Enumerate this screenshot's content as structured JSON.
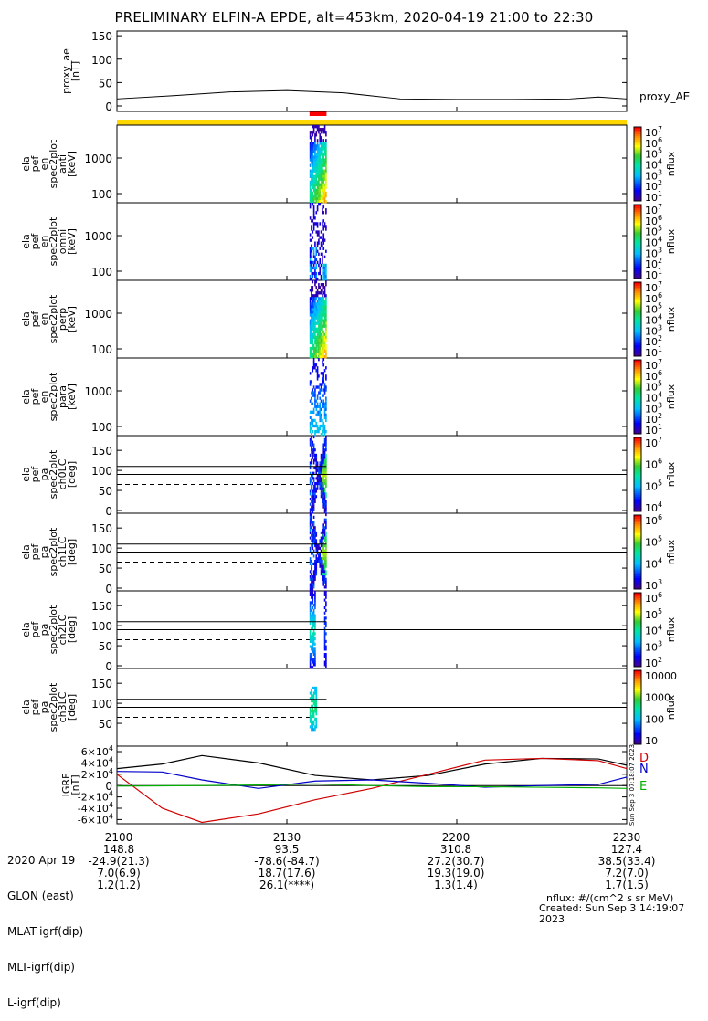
{
  "title": "PRELIMINARY ELFIN-A EPDE, alt=453km, 2020-04-19 21:00 to 22:30",
  "colors": {
    "science_bar": "#ffd700",
    "interval_bar": "#ff0000",
    "D": "#d00000",
    "N": "#0000c8",
    "E": "#00b000"
  },
  "panels": [
    {
      "key": "proxy_ae",
      "ylabel": [
        "proxy_ae",
        "[nT]"
      ],
      "yticks": [
        "150",
        "100",
        "50",
        "0"
      ],
      "right_label": "proxy_AE"
    },
    {
      "key": "spec_anti",
      "ylabel": [
        "ela",
        "pef",
        "en",
        "spec2plot",
        "anti",
        "[keV]"
      ],
      "yticks": [
        "1000",
        "100"
      ],
      "cbar_ticks": [
        "10^7",
        "10^6",
        "10^5",
        "10^4",
        "10^3",
        "10^2",
        "10^1"
      ],
      "cbar_label": "nflux"
    },
    {
      "key": "spec_omni",
      "ylabel": [
        "ela",
        "pef",
        "en",
        "spec2plot",
        "omni",
        "[keV]"
      ],
      "yticks": [
        "1000",
        "100"
      ],
      "cbar_ticks": [
        "10^7",
        "10^6",
        "10^5",
        "10^4",
        "10^3",
        "10^2",
        "10^1"
      ],
      "cbar_label": "nflux"
    },
    {
      "key": "spec_perp",
      "ylabel": [
        "ela",
        "pef",
        "en",
        "spec2plot",
        "perp",
        "[keV]"
      ],
      "yticks": [
        "1000",
        "100"
      ],
      "cbar_ticks": [
        "10^7",
        "10^6",
        "10^5",
        "10^4",
        "10^3",
        "10^2",
        "10^1"
      ],
      "cbar_label": "nflux"
    },
    {
      "key": "spec_para",
      "ylabel": [
        "ela",
        "pef",
        "en",
        "spec2plot",
        "para",
        "[keV]"
      ],
      "yticks": [
        "1000",
        "100"
      ],
      "cbar_ticks": [
        "10^7",
        "10^6",
        "10^5",
        "10^4",
        "10^3",
        "10^2",
        "10^1"
      ],
      "cbar_label": "nflux"
    },
    {
      "key": "pa_ch0",
      "ylabel": [
        "ela",
        "pef",
        "pa",
        "spec2plot",
        "ch0LC",
        "[deg]"
      ],
      "yticks": [
        "150",
        "100",
        "50",
        "0"
      ],
      "cbar_ticks": [
        "10^7",
        "10^6",
        "10^5",
        "10^4"
      ],
      "cbar_label": "nflux"
    },
    {
      "key": "pa_ch1",
      "ylabel": [
        "ela",
        "pef",
        "pa",
        "spec2plot",
        "ch1LC",
        "[deg]"
      ],
      "yticks": [
        "150",
        "100",
        "50",
        "0"
      ],
      "cbar_ticks": [
        "10^6",
        "10^5",
        "10^4",
        "10^3"
      ],
      "cbar_label": "nflux"
    },
    {
      "key": "pa_ch2",
      "ylabel": [
        "ela",
        "pef",
        "pa",
        "spec2plot",
        "ch2LC",
        "[deg]"
      ],
      "yticks": [
        "150",
        "100",
        "50",
        "0"
      ],
      "cbar_ticks": [
        "10^6",
        "10^5",
        "10^4",
        "10^3",
        "10^2"
      ],
      "cbar_label": "nflux"
    },
    {
      "key": "pa_ch3",
      "ylabel": [
        "ela",
        "pef",
        "pa",
        "spec2plot",
        "ch3LC",
        "[deg]"
      ],
      "yticks": [
        "150",
        "100",
        "50"
      ],
      "cbar_ticks": [
        "10000",
        "1000",
        "100",
        "10"
      ],
      "cbar_label": "nflux"
    },
    {
      "key": "igrf",
      "ylabel": [
        "IGRF",
        "[nT]"
      ],
      "yticks": [
        "6×10^4",
        "4×10^4",
        "2×10^4",
        "0",
        "-2×10^4",
        "-4×10^4",
        "-6×10^4"
      ],
      "legend": [
        "D",
        "N",
        "E"
      ]
    }
  ],
  "info_labels": [
    "2020 Apr 19",
    "GLON (east)",
    "MLAT-igrf(dip)",
    "MLT-igrf(dip)",
    "L-igrf(dip)"
  ],
  "info_columns": [
    {
      "time": "2100",
      "glon": "148.8",
      "mlat": "-24.9(21.3)",
      "mlt": "7.0(6.9)",
      "l": "1.2(1.2)"
    },
    {
      "time": "2130",
      "glon": "93.5",
      "mlat": "-78.6(-84.7)",
      "mlt": "18.7(17.6)",
      "l": "26.1(****)"
    },
    {
      "time": "2200",
      "glon": "310.8",
      "mlat": "27.2(30.7)",
      "mlt": "19.3(19.0)",
      "l": "1.3(1.4)"
    },
    {
      "time": "2230",
      "glon": "127.4",
      "mlat": "38.5(33.4)",
      "mlt": "7.2(7.0)",
      "l": "1.7(1.5)"
    }
  ],
  "footer": {
    "units": "nflux: #/(cm^2 s sr MeV)",
    "created": "Created: Sun Sep  3 14:19:07 2023",
    "side_stamp": "Sun Sep  3 07:18:07 2023"
  },
  "chart_data": [
    {
      "type": "line",
      "name": "proxy_AE",
      "x": [
        "21:00",
        "21:10",
        "21:20",
        "21:30",
        "21:40",
        "21:50",
        "22:00",
        "22:10",
        "22:20",
        "22:25",
        "22:30"
      ],
      "values": [
        15,
        22,
        30,
        33,
        28,
        15,
        14,
        14,
        15,
        19,
        15
      ],
      "ylim": [
        0,
        160
      ],
      "ylabel": "proxy_ae [nT]"
    },
    {
      "type": "heatmap",
      "name": "ela pef en spec2plot",
      "xlim": [
        "21:00",
        "22:30"
      ],
      "yscale": "log",
      "ylim_keV": [
        60,
        7000
      ],
      "active_interval": [
        "21:34",
        "21:37"
      ],
      "colorbar": "nflux 10^1 to 10^7"
    },
    {
      "type": "heatmap",
      "name": "ela pef pa spec2plot",
      "ylim_deg": [
        0,
        180
      ],
      "reference_lines_deg": {
        "solid": [
          90,
          110
        ],
        "dashed": [
          65
        ]
      },
      "colorbar": "nflux"
    },
    {
      "type": "line",
      "name": "IGRF",
      "ylim": [
        -70000,
        70000
      ],
      "series": [
        {
          "name": "black",
          "x": [
            "21:00",
            "21:08",
            "21:15",
            "21:25",
            "21:35",
            "21:45",
            "21:55",
            "22:05",
            "22:15",
            "22:25",
            "22:30"
          ],
          "values": [
            30000,
            38000,
            53000,
            40000,
            18000,
            10000,
            18000,
            38000,
            48000,
            47000,
            36000
          ]
        },
        {
          "name": "D",
          "x": [
            "21:00",
            "21:08",
            "21:15",
            "21:25",
            "21:35",
            "21:45",
            "21:55",
            "22:05",
            "22:15",
            "22:25",
            "22:30"
          ],
          "values": [
            20000,
            -40000,
            -65000,
            -50000,
            -25000,
            -5000,
            20000,
            45000,
            48000,
            44000,
            30000
          ]
        },
        {
          "name": "N",
          "x": [
            "21:00",
            "21:08",
            "21:15",
            "21:25",
            "21:35",
            "21:45",
            "21:55",
            "22:05",
            "22:15",
            "22:25",
            "22:30"
          ],
          "values": [
            25000,
            24000,
            10000,
            -5000,
            8000,
            10000,
            4000,
            -3000,
            0,
            2000,
            15000
          ]
        },
        {
          "name": "E",
          "x": [
            "21:00",
            "21:08",
            "21:15",
            "21:25",
            "21:35",
            "21:45",
            "21:55",
            "22:05",
            "22:15",
            "22:25",
            "22:30"
          ],
          "values": [
            -1000,
            -500,
            0,
            1000,
            3000,
            0,
            -2000,
            -2000,
            -3000,
            -4000,
            -5000
          ]
        }
      ]
    }
  ]
}
